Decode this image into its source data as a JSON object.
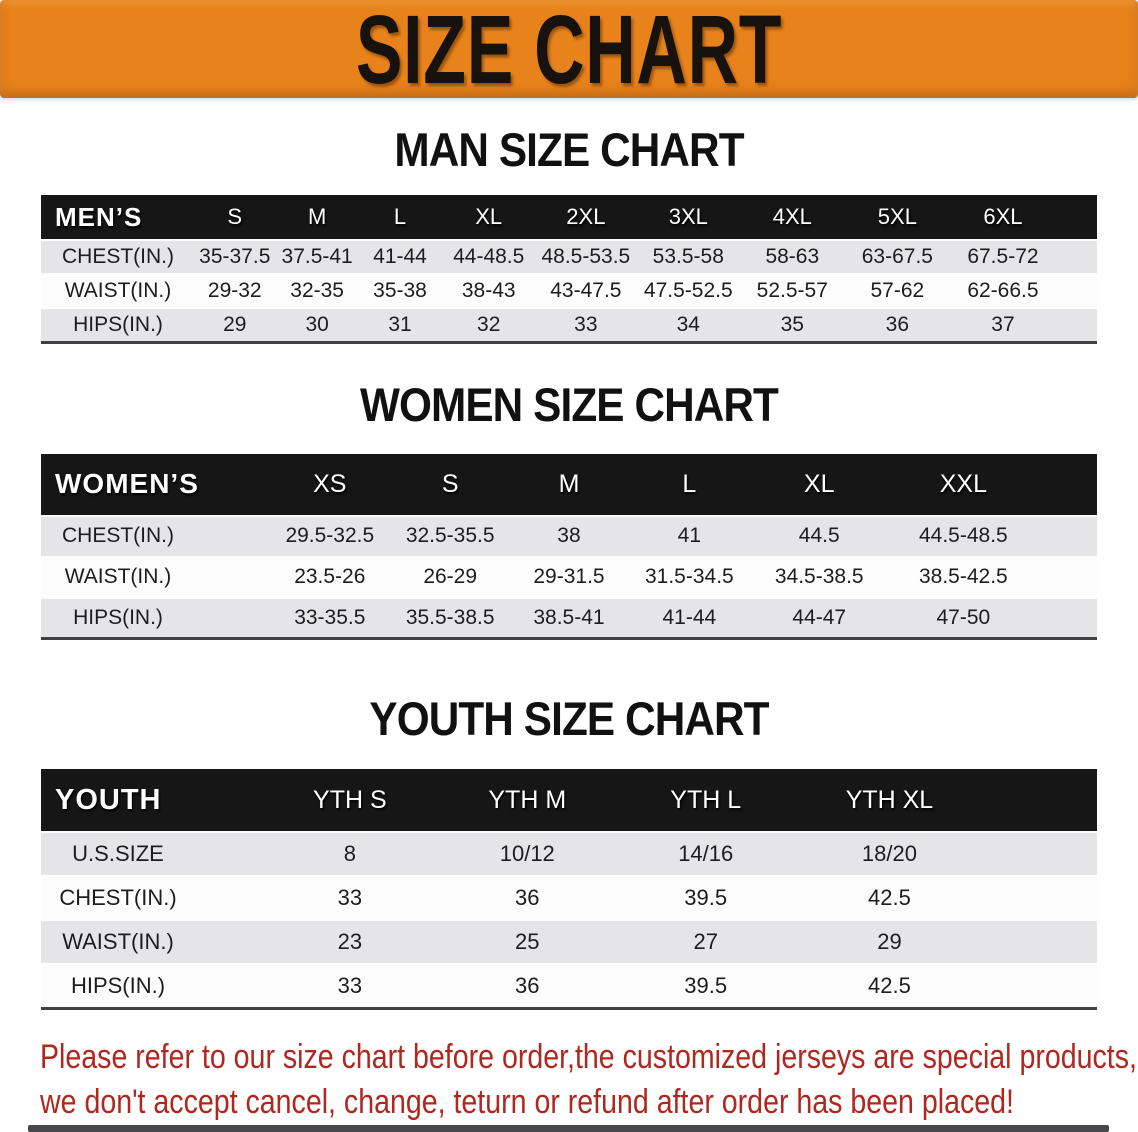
{
  "banner": {
    "title": "SIZE CHART",
    "bg_color": "#E8821B"
  },
  "sections": [
    {
      "id": "men",
      "heading": "MAN SIZE CHART",
      "group_label": "MEN’S",
      "columns": [
        "S",
        "M",
        "L",
        "XL",
        "2XL",
        "3XL",
        "4XL",
        "5XL",
        "6XL"
      ],
      "rows": [
        {
          "label": "CHEST(IN.)",
          "values": [
            "35-37.5",
            "37.5-41",
            "41-44",
            "44-48.5",
            "48.5-53.5",
            "53.5-58",
            "58-63",
            "63-67.5",
            "67.5-72"
          ]
        },
        {
          "label": "WAIST(IN.)",
          "values": [
            "29-32",
            "32-35",
            "35-38",
            "38-43",
            "43-47.5",
            "47.5-52.5",
            "52.5-57",
            "57-62",
            "62-66.5"
          ]
        },
        {
          "label": "HIPS(IN.)",
          "values": [
            "29",
            "30",
            "31",
            "32",
            "33",
            "34",
            "35",
            "36",
            "37"
          ]
        }
      ]
    },
    {
      "id": "women",
      "heading": "WOMEN SIZE CHART",
      "group_label": "WOMEN’S",
      "columns": [
        "XS",
        "S",
        "M",
        "L",
        "XL",
        "XXL"
      ],
      "rows": [
        {
          "label": "CHEST(IN.)",
          "values": [
            "29.5-32.5",
            "32.5-35.5",
            "38",
            "41",
            "44.5",
            "44.5-48.5"
          ]
        },
        {
          "label": "WAIST(IN.)",
          "values": [
            "23.5-26",
            "26-29",
            "29-31.5",
            "31.5-34.5",
            "34.5-38.5",
            "38.5-42.5"
          ]
        },
        {
          "label": "HIPS(IN.)",
          "values": [
            "33-35.5",
            "35.5-38.5",
            "38.5-41",
            "41-44",
            "44-47",
            "47-50"
          ]
        }
      ]
    },
    {
      "id": "youth",
      "heading": "YOUTH SIZE CHART",
      "group_label": "YOUTH",
      "columns": [
        "YTH S",
        "YTH M",
        "YTH L",
        "YTH XL"
      ],
      "rows": [
        {
          "label": "U.S.SIZE",
          "values": [
            "8",
            "10/12",
            "14/16",
            "18/20"
          ]
        },
        {
          "label": "CHEST(IN.)",
          "values": [
            "33",
            "36",
            "39.5",
            "42.5"
          ]
        },
        {
          "label": "WAIST(IN.)",
          "values": [
            "23",
            "25",
            "27",
            "29"
          ]
        },
        {
          "label": "HIPS(IN.)",
          "values": [
            "33",
            "36",
            "39.5",
            "42.5"
          ]
        }
      ]
    }
  ],
  "footnote": {
    "line1": "Please refer to our size chart before order,the customized jerseys are special products,",
    "line2": "we don't accept cancel, change, teturn or refund after order has been placed!",
    "color": "#B0271F"
  }
}
